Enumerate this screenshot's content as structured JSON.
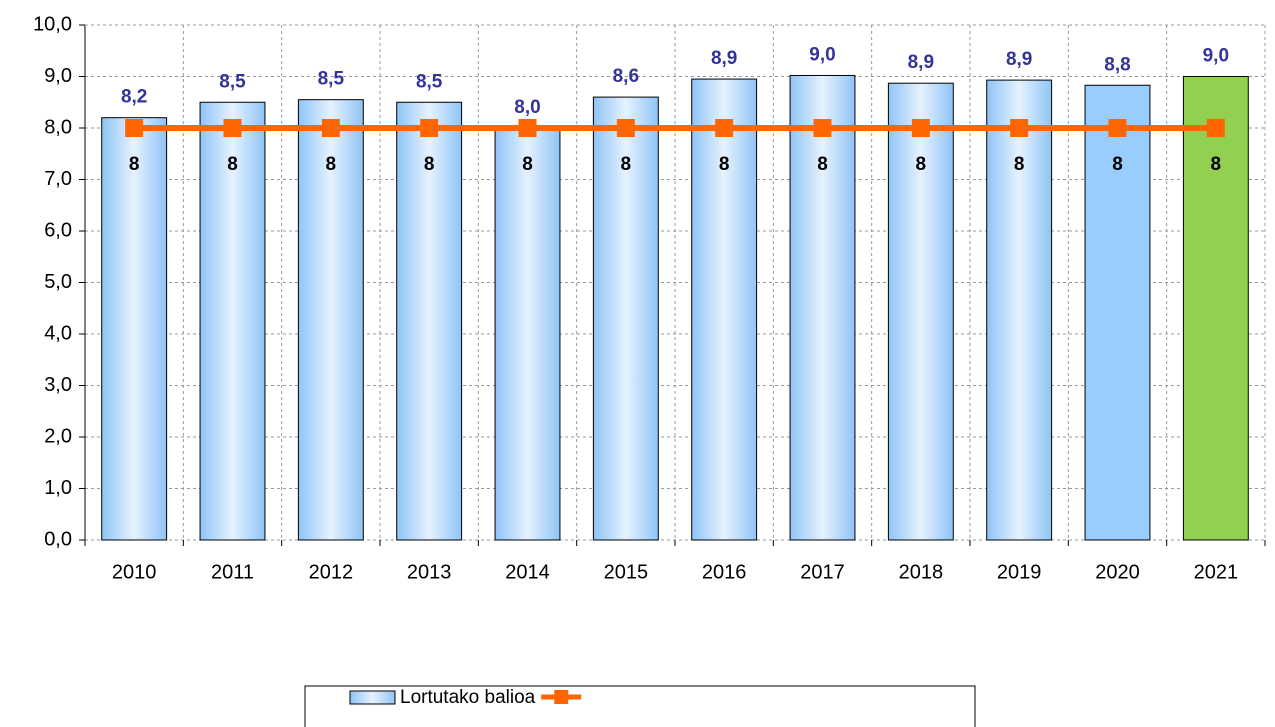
{
  "chart_data": {
    "type": "bar",
    "categories": [
      "2010",
      "2011",
      "2012",
      "2013",
      "2014",
      "2015",
      "2016",
      "2017",
      "2018",
      "2019",
      "2020",
      "2021"
    ],
    "series": [
      {
        "name": "Lortutako balioa",
        "type": "bar",
        "color": "#99ccff",
        "colors": [
          "#99ccff",
          "#99ccff",
          "#99ccff",
          "#99ccff",
          "#99ccff",
          "#99ccff",
          "#99ccff",
          "#99ccff",
          "#99ccff",
          "#99ccff",
          "#99ccff",
          "#92d050"
        ],
        "gradient": [
          true,
          true,
          true,
          true,
          true,
          true,
          true,
          true,
          true,
          true,
          false,
          false
        ],
        "values": [
          8.2,
          8.5,
          8.55,
          8.5,
          8.0,
          8.6,
          8.95,
          9.02,
          8.87,
          8.93,
          8.83,
          9.0
        ],
        "value_labels": [
          "8,2",
          "8,5",
          "8,5",
          "8,5",
          "8,0",
          "8,6",
          "8,9",
          "9,0",
          "8,9",
          "8,9",
          "8,8",
          "9,0"
        ],
        "label_color": "#333399"
      },
      {
        "type": "line",
        "color": "#ff6600",
        "marker": "square",
        "values": [
          8,
          8,
          8,
          8,
          8,
          8,
          8,
          8,
          8,
          8,
          8,
          8
        ],
        "label_color": "#000000"
      }
    ],
    "ylim": [
      0,
      10
    ],
    "yticks": [
      {
        "value": 0,
        "label": "0,0"
      },
      {
        "value": 1,
        "label": "1,0"
      },
      {
        "value": 2,
        "label": "2,0"
      },
      {
        "value": 3,
        "label": "3,0"
      },
      {
        "value": 4,
        "label": "4,0"
      },
      {
        "value": 5,
        "label": "5,0"
      },
      {
        "value": 6,
        "label": "6,0"
      },
      {
        "value": 7,
        "label": "7,0"
      },
      {
        "value": 8,
        "label": "8,0"
      },
      {
        "value": 9,
        "label": "9,0"
      },
      {
        "value": 10,
        "label": "10,0"
      }
    ],
    "grid": true,
    "legend": "bottom"
  }
}
